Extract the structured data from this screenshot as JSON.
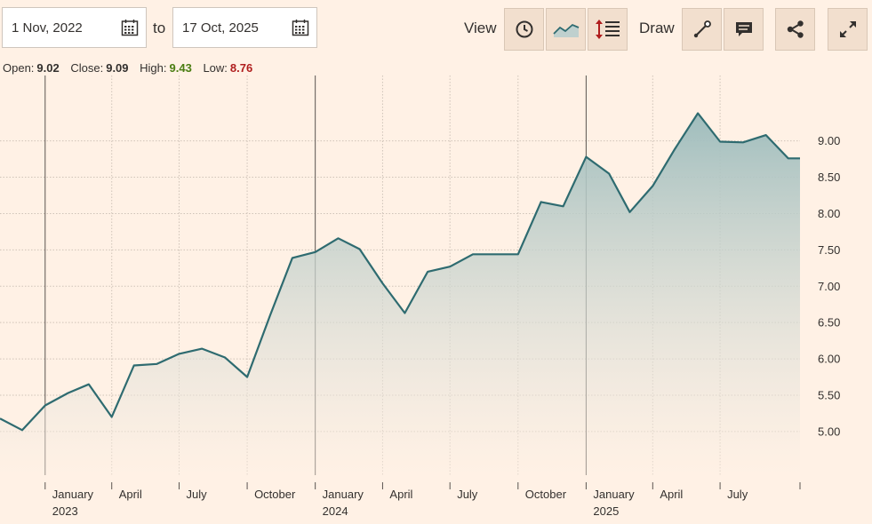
{
  "range": {
    "start_value": "1 Nov, 2022",
    "separator": "to",
    "end_value": "17 Oct, 2025"
  },
  "toolbar": {
    "view_label": "View",
    "draw_label": "Draw"
  },
  "ohlc": {
    "open_label": "Open:",
    "open_value": "9.02",
    "close_label": "Close:",
    "close_value": "9.09",
    "high_label": "High:",
    "high_value": "9.43",
    "low_label": "Low:",
    "low_value": "8.76"
  },
  "colors": {
    "background": "#fff1e5",
    "line": "#2e6b70",
    "area_top": "#9fbdbd",
    "high": "#4a7d12",
    "low": "#b01e1e",
    "button_bg": "#f2dfce"
  },
  "chart_data": {
    "type": "area",
    "title": "",
    "xlabel": "",
    "ylabel": "",
    "x_ticks": [
      {
        "date": "2023-01",
        "label": "January",
        "year": "2023"
      },
      {
        "date": "2023-04",
        "label": "April",
        "year": ""
      },
      {
        "date": "2023-07",
        "label": "July",
        "year": ""
      },
      {
        "date": "2023-10",
        "label": "October",
        "year": ""
      },
      {
        "date": "2024-01",
        "label": "January",
        "year": "2024"
      },
      {
        "date": "2024-04",
        "label": "April",
        "year": ""
      },
      {
        "date": "2024-07",
        "label": "July",
        "year": ""
      },
      {
        "date": "2024-10",
        "label": "October",
        "year": ""
      },
      {
        "date": "2025-01",
        "label": "January",
        "year": "2025"
      },
      {
        "date": "2025-04",
        "label": "April",
        "year": ""
      },
      {
        "date": "2025-07",
        "label": "July",
        "year": ""
      }
    ],
    "y_ticks": [
      5.0,
      5.5,
      6.0,
      6.5,
      7.0,
      7.5,
      8.0,
      8.5,
      9.0
    ],
    "ylim": [
      4.4,
      9.9
    ],
    "x_range": [
      "2022-11-01",
      "2025-10-17"
    ],
    "grid": true,
    "series": [
      {
        "points": [
          {
            "date": "2022-11-01",
            "value": 5.18
          },
          {
            "date": "2022-12-01",
            "value": 5.02
          },
          {
            "date": "2023-01-01",
            "value": 5.36
          },
          {
            "date": "2023-02-01",
            "value": 5.53
          },
          {
            "date": "2023-03-01",
            "value": 5.65
          },
          {
            "date": "2023-04-01",
            "value": 5.2
          },
          {
            "date": "2023-05-01",
            "value": 5.91
          },
          {
            "date": "2023-06-01",
            "value": 5.93
          },
          {
            "date": "2023-07-01",
            "value": 6.07
          },
          {
            "date": "2023-08-01",
            "value": 6.14
          },
          {
            "date": "2023-09-01",
            "value": 6.02
          },
          {
            "date": "2023-10-01",
            "value": 5.75
          },
          {
            "date": "2023-11-01",
            "value": 6.6
          },
          {
            "date": "2023-12-01",
            "value": 7.39
          },
          {
            "date": "2024-01-01",
            "value": 7.47
          },
          {
            "date": "2024-02-01",
            "value": 7.66
          },
          {
            "date": "2024-03-01",
            "value": 7.51
          },
          {
            "date": "2024-04-01",
            "value": 7.04
          },
          {
            "date": "2024-05-01",
            "value": 6.63
          },
          {
            "date": "2024-06-01",
            "value": 7.2
          },
          {
            "date": "2024-07-01",
            "value": 7.27
          },
          {
            "date": "2024-08-01",
            "value": 7.44
          },
          {
            "date": "2024-09-01",
            "value": 7.44
          },
          {
            "date": "2024-10-01",
            "value": 7.44
          },
          {
            "date": "2024-11-01",
            "value": 8.16
          },
          {
            "date": "2024-12-01",
            "value": 8.1
          },
          {
            "date": "2025-01-01",
            "value": 8.78
          },
          {
            "date": "2025-02-01",
            "value": 8.55
          },
          {
            "date": "2025-03-01",
            "value": 8.02
          },
          {
            "date": "2025-04-01",
            "value": 8.38
          },
          {
            "date": "2025-05-01",
            "value": 8.89
          },
          {
            "date": "2025-06-01",
            "value": 9.38
          },
          {
            "date": "2025-07-01",
            "value": 8.99
          },
          {
            "date": "2025-08-01",
            "value": 8.98
          },
          {
            "date": "2025-09-01",
            "value": 9.08
          },
          {
            "date": "2025-10-01",
            "value": 8.76
          }
        ]
      }
    ]
  }
}
